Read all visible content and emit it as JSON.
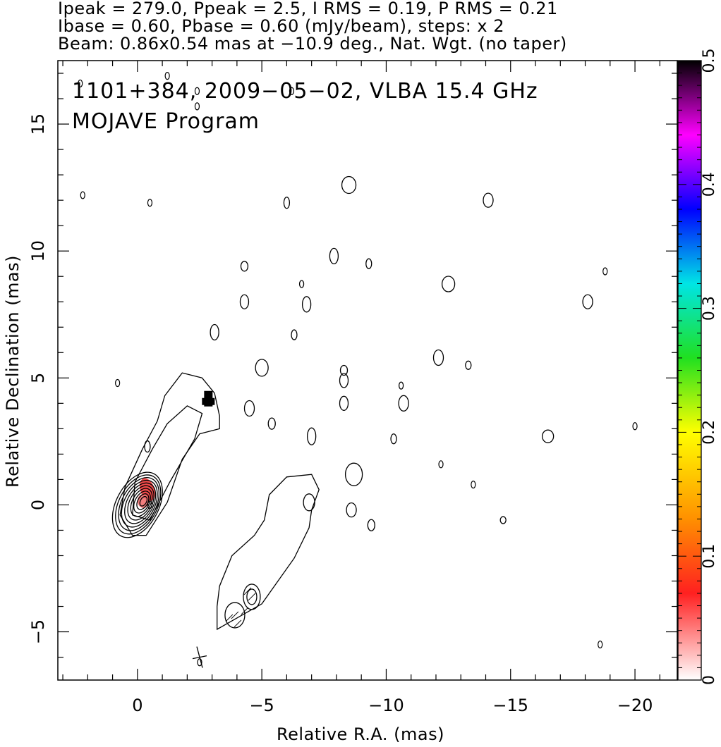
{
  "header": {
    "line1": "Ipeak = 279.0, Ppeak = 2.5, I RMS = 0.19, P RMS = 0.21",
    "line2": "Ibase = 0.60, Pbase = 0.60 (mJy/beam), steps: x 2",
    "line3": "Beam: 0.86x0.54 mas at −10.9 deg., Nat. Wgt. (no taper)"
  },
  "chart_data": {
    "type": "heatmap",
    "title": "1101+384, 2009−05−02, VLBA 15.4 GHz",
    "subtitle": "MOJAVE Program",
    "xlabel": "Relative R.A. (mas)",
    "ylabel": "Relative Declination (mas)",
    "xlim": [
      3.2,
      -21.7
    ],
    "ylim": [
      -6.9,
      17.5
    ],
    "x_ticks": [
      0,
      -5,
      -10,
      -15,
      -20
    ],
    "x_tick_labels": [
      "0",
      "−5",
      "−10",
      "−15",
      "−20"
    ],
    "y_ticks": [
      -5,
      0,
      5,
      10,
      15
    ],
    "y_tick_labels": [
      "−5",
      "0",
      "5",
      "10",
      "15"
    ],
    "colorbar": {
      "min": 0,
      "max": 0.5,
      "ticks": [
        0,
        0.1,
        0.2,
        0.3,
        0.4,
        0.5
      ],
      "tick_labels": [
        "0",
        "0.1",
        "0.2",
        "0.3",
        "0.4",
        "0.5"
      ],
      "stops": [
        "#ffffff",
        "#ff0000",
        "#ff8c00",
        "#ffff00",
        "#00e600",
        "#00e5e5",
        "#0000ff",
        "#ff00ff",
        "#000000"
      ]
    },
    "core": {
      "x": 0,
      "y": 0,
      "contour_levels": 10
    },
    "jet_ridge": [
      [
        0,
        0
      ],
      [
        -0.8,
        1.2
      ],
      [
        -1.8,
        3.0
      ],
      [
        -2.9,
        4.2
      ]
    ],
    "southern_component": {
      "x": -4.2,
      "y": -3.9
    },
    "polarized_peaks": [
      {
        "x": -0.4,
        "y": 0.6,
        "value": 0.09
      },
      {
        "x": -2.85,
        "y": 4.1,
        "value": 0.5
      }
    ],
    "beam": {
      "major": 0.86,
      "minor": 0.54,
      "pa": -10.9,
      "x": -2.5,
      "y": -6.0
    }
  }
}
